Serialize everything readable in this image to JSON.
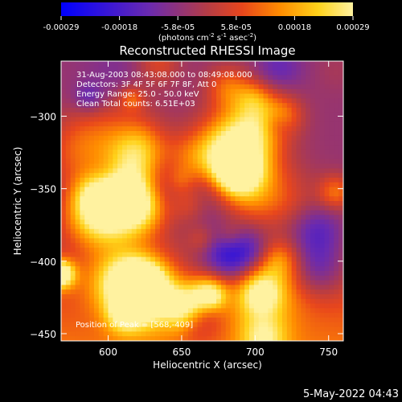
{
  "chart_data": {
    "type": "heatmap",
    "title": "Reconstructed RHESSI Image",
    "xlabel": "Heliocentric X (arcsec)",
    "ylabel": "Heliocentric Y (arcsec)",
    "xlim": [
      568,
      760
    ],
    "ylim": [
      -455,
      -262
    ],
    "x_ticks": [
      "600",
      "650",
      "700",
      "750"
    ],
    "y_ticks": [
      "-300",
      "-350",
      "-400",
      "-450"
    ],
    "colorbar": {
      "tick_labels": [
        "-0.00029",
        "-0.00018",
        "-5.8e-05",
        "5.8e-05",
        "0.00018",
        "0.00029"
      ],
      "units": "(photons cm",
      "units_sup1": "-2",
      "units_mid1": " s",
      "units_sup2": "-1",
      "units_mid2": " asec",
      "units_sup3": "-2",
      "units_end": ")",
      "range": [
        -0.00029,
        0.00029
      ],
      "colormap": [
        "#0000ff",
        "#6a2ab0",
        "#b43c46",
        "#e8461c",
        "#ff8c00",
        "#ffd21a",
        "#fff2a0"
      ]
    },
    "info_lines": [
      "31-Aug-2003 08:43:08.000 to 08:49:08.000",
      "Detectors: 3F 4F 5F 6F 7F 8F, Att 0",
      "Energy Range: 25.0 - 50.0 keV",
      "Clean     Total counts: 6.51E+03"
    ],
    "peak_text": "Position of Peak = [568,-409]",
    "peak_position": [
      568,
      -409
    ],
    "timestamp": "5-May-2022 04:43"
  }
}
